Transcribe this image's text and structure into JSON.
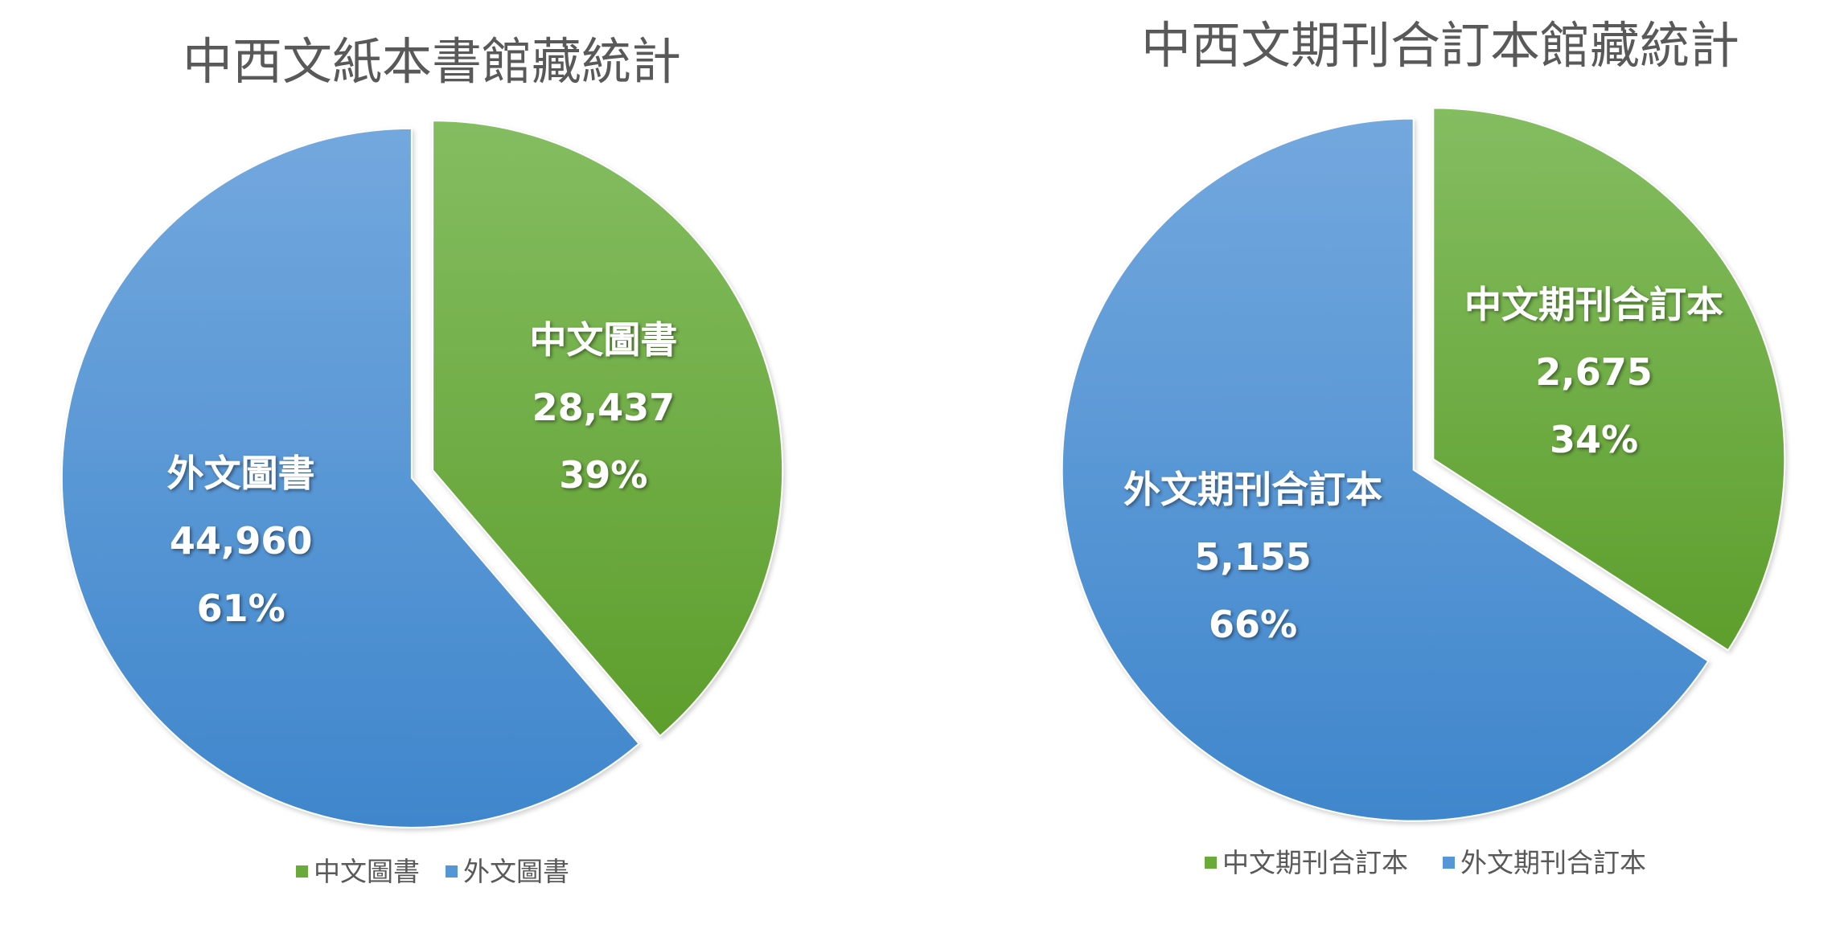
{
  "chart_data": [
    {
      "type": "pie",
      "title": "中西文紙本書館藏統計",
      "categories": [
        "中文圖書",
        "外文圖書"
      ],
      "values": [
        28437,
        44960
      ],
      "value_labels": [
        "28,437",
        "44,960"
      ],
      "percent_labels": [
        "39%",
        "61%"
      ],
      "colors": [
        "#6aaa3a",
        "#5596d6"
      ],
      "legend": "bottom",
      "exploded": true
    },
    {
      "type": "pie",
      "title": "中西文期刊合訂本館藏統計",
      "categories": [
        "中文期刊合訂本",
        "外文期刊合訂本"
      ],
      "values": [
        2675,
        5155
      ],
      "value_labels": [
        "2,675",
        "5,155"
      ],
      "percent_labels": [
        "34%",
        "66%"
      ],
      "colors": [
        "#6aaa3a",
        "#5596d6"
      ],
      "legend": "bottom",
      "exploded": true
    }
  ]
}
